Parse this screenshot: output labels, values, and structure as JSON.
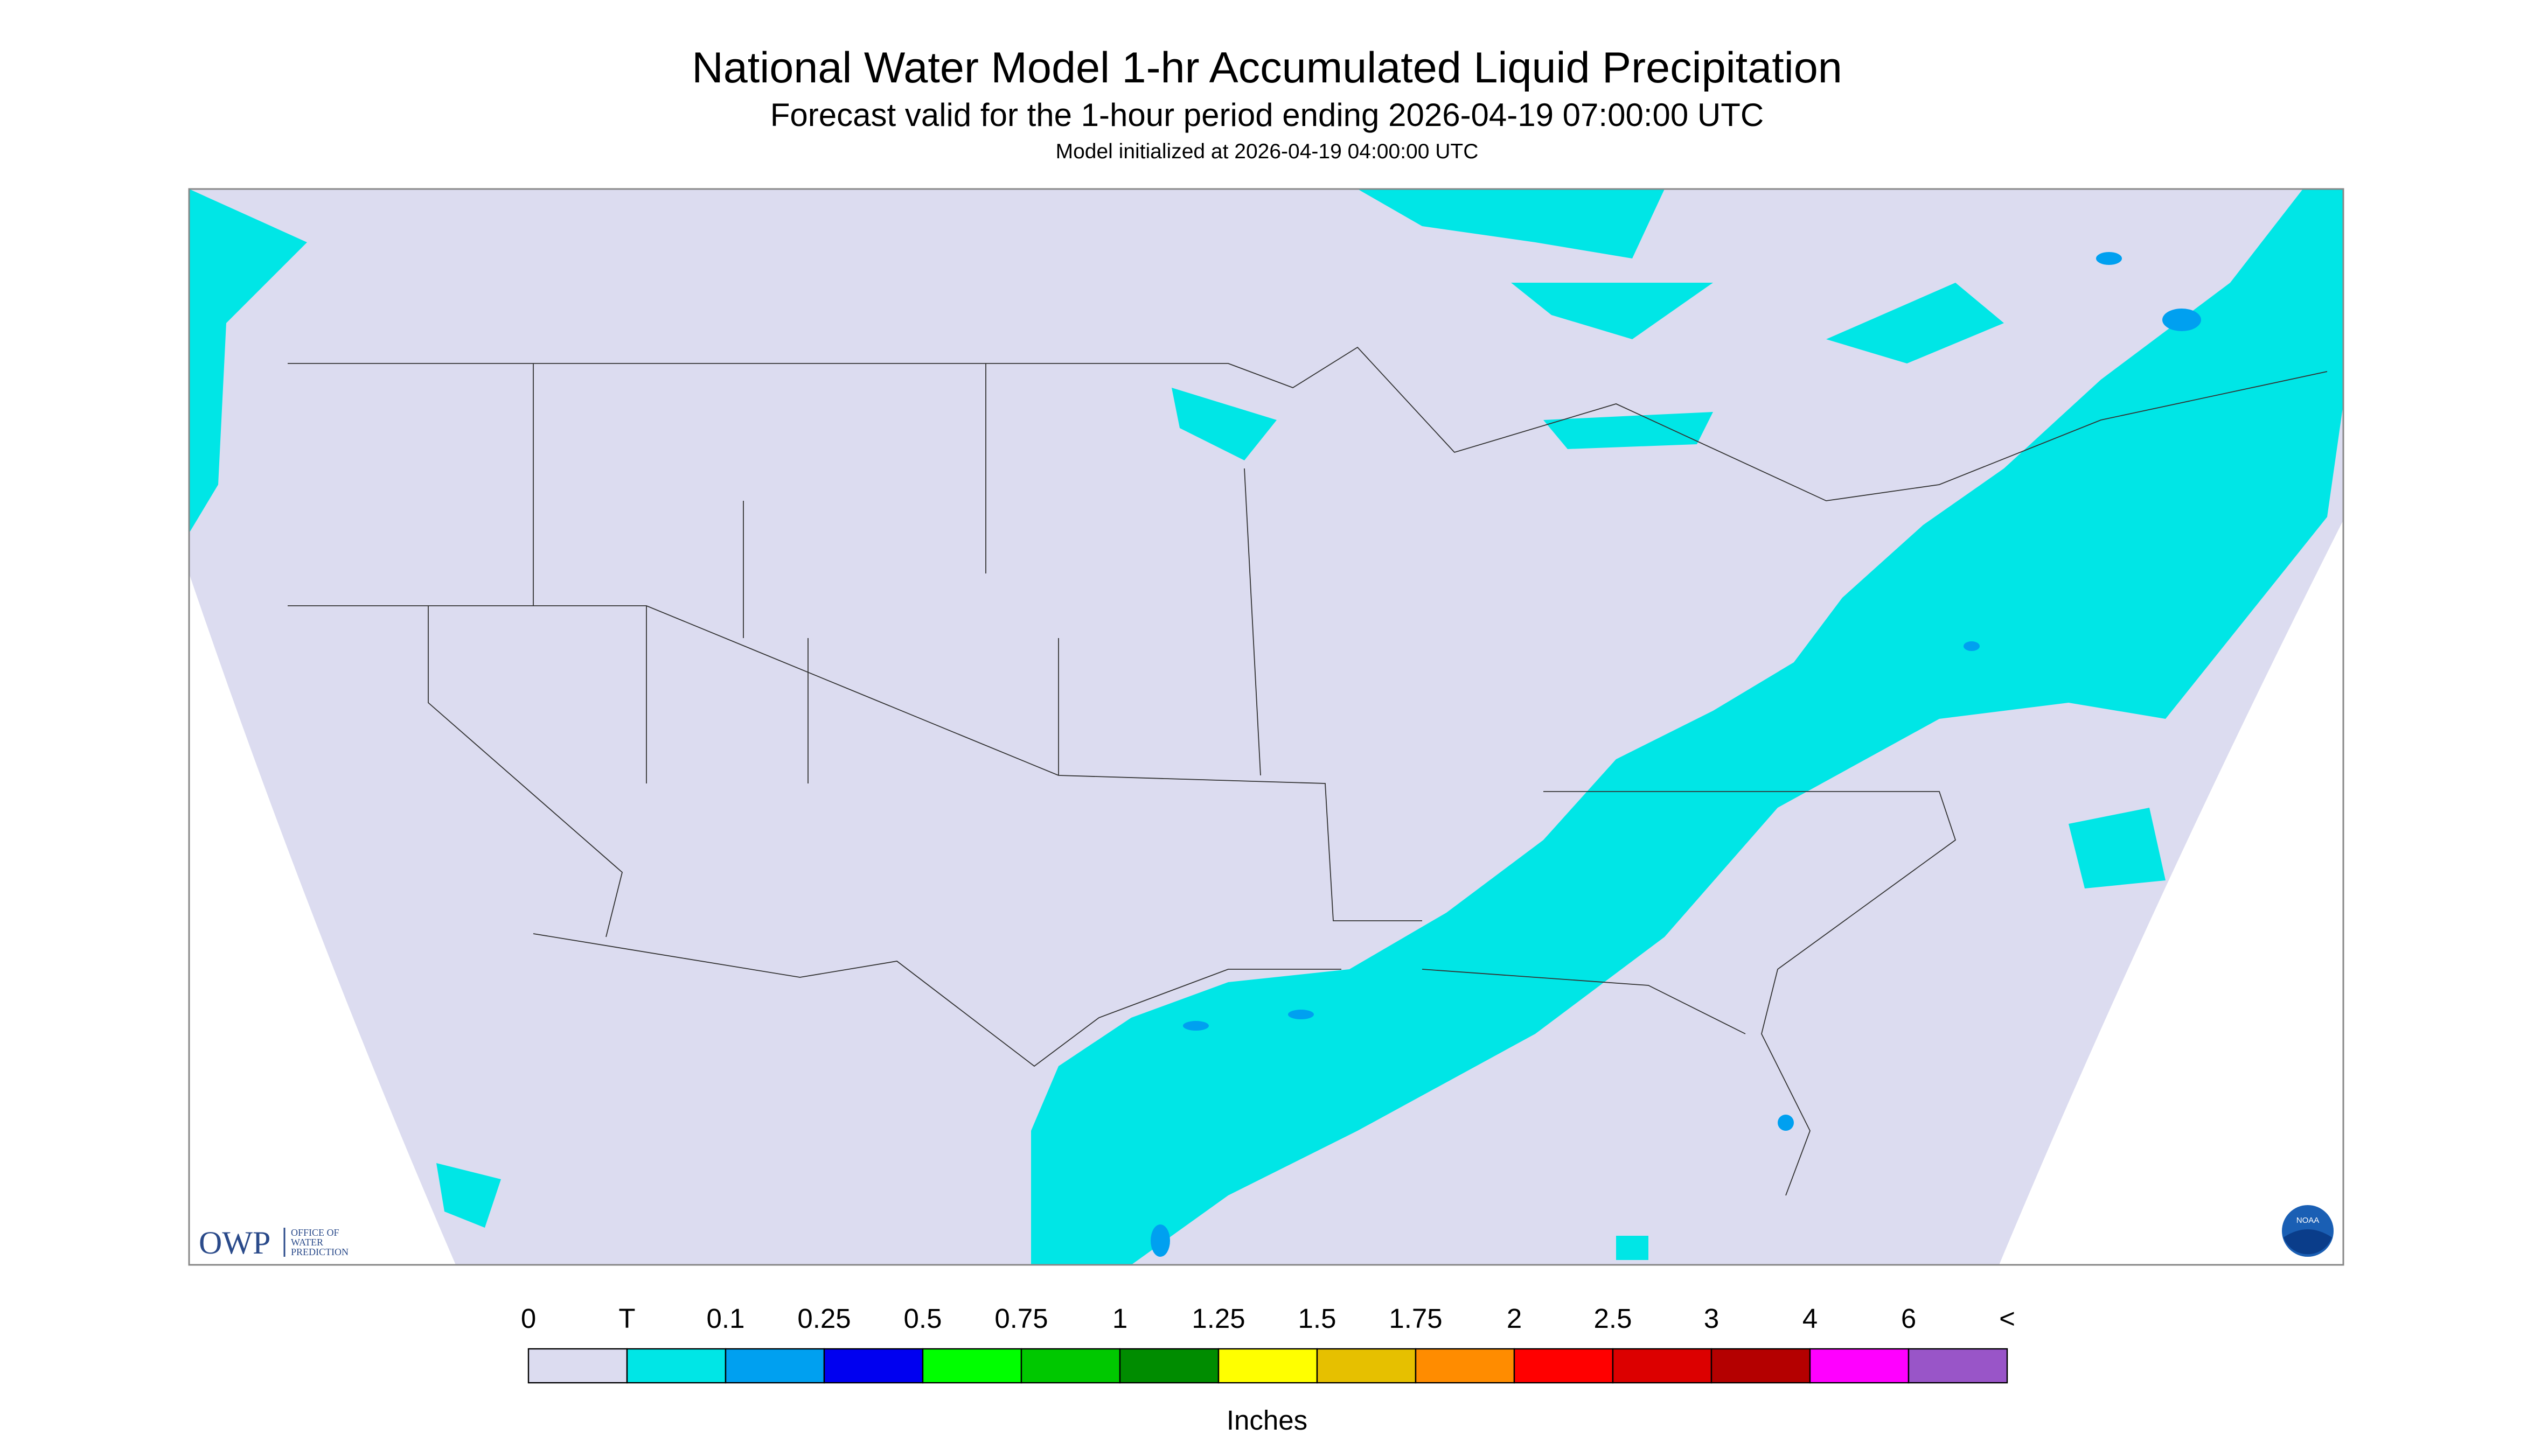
{
  "header": {
    "title": "National Water Model 1-hr Accumulated Liquid Precipitation",
    "subtitle": "Forecast valid for the 1-hour period ending 2026-04-19 07:00:00 UTC",
    "init": "Model initialized at 2026-04-19 04:00:00 UTC"
  },
  "logos": {
    "owp": "OWP",
    "owp_office": "OFFICE OF",
    "owp_water": "WATER",
    "owp_prediction": "PREDICTION",
    "noaa": "NOAA"
  },
  "legend": {
    "labels": [
      "0",
      "T",
      "0.1",
      "0.25",
      "0.5",
      "0.75",
      "1",
      "1.25",
      "1.5",
      "1.75",
      "2",
      "2.5",
      "3",
      "4",
      "6",
      "<"
    ],
    "colors": [
      "#dcdcf0",
      "#00e6e6",
      "#00a0f0",
      "#0000f0",
      "#00ff00",
      "#00c800",
      "#008c00",
      "#ffff00",
      "#e6c000",
      "#ff8c00",
      "#ff0000",
      "#dc0000",
      "#b40000",
      "#ff00ff",
      "#9955c8"
    ],
    "unit": "Inches"
  }
}
